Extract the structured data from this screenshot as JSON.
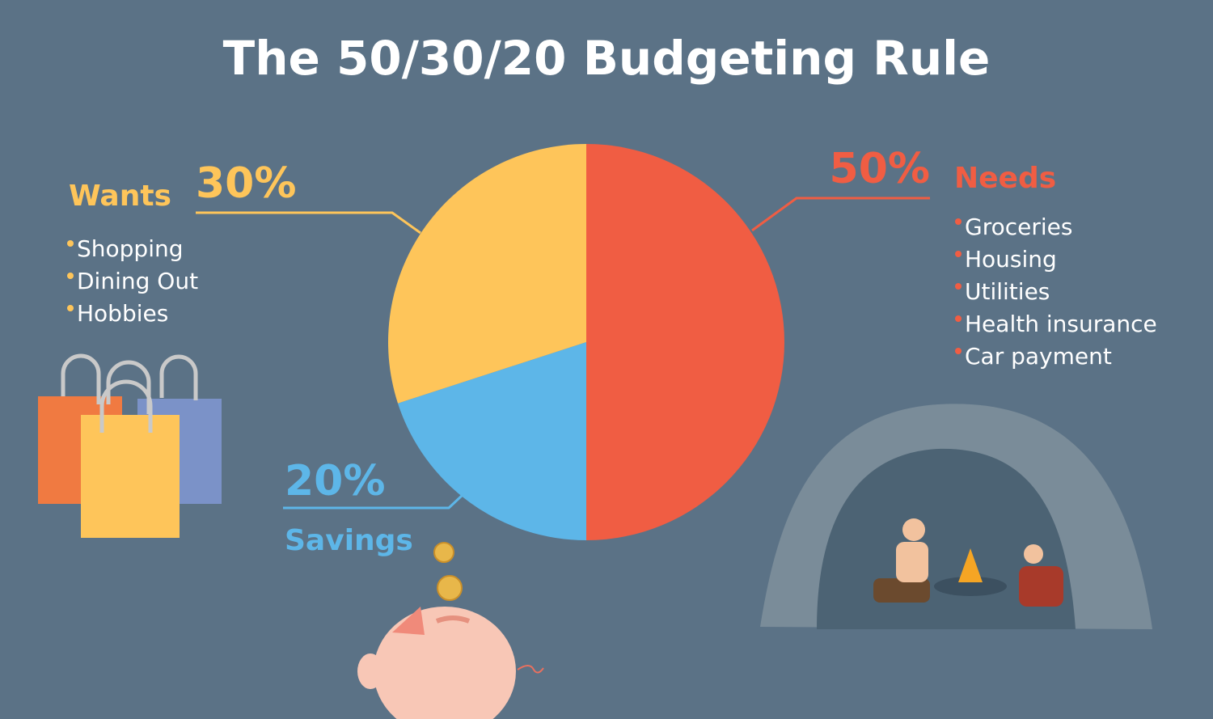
{
  "chart_data": {
    "type": "pie",
    "title": "The 50/30/20 Budgeting Rule",
    "categories": [
      "Needs",
      "Savings",
      "Wants"
    ],
    "values": [
      50,
      20,
      30
    ],
    "value_labels": [
      "50%",
      "20%",
      "30%"
    ],
    "colors": [
      "#f05d43",
      "#5db6e8",
      "#fec55a"
    ],
    "items": [
      [
        "Groceries",
        "Housing",
        "Utilities",
        "Health insurance",
        "Car payment"
      ],
      [],
      [
        "Shopping",
        "Dining Out",
        "Hobbies"
      ]
    ]
  }
}
